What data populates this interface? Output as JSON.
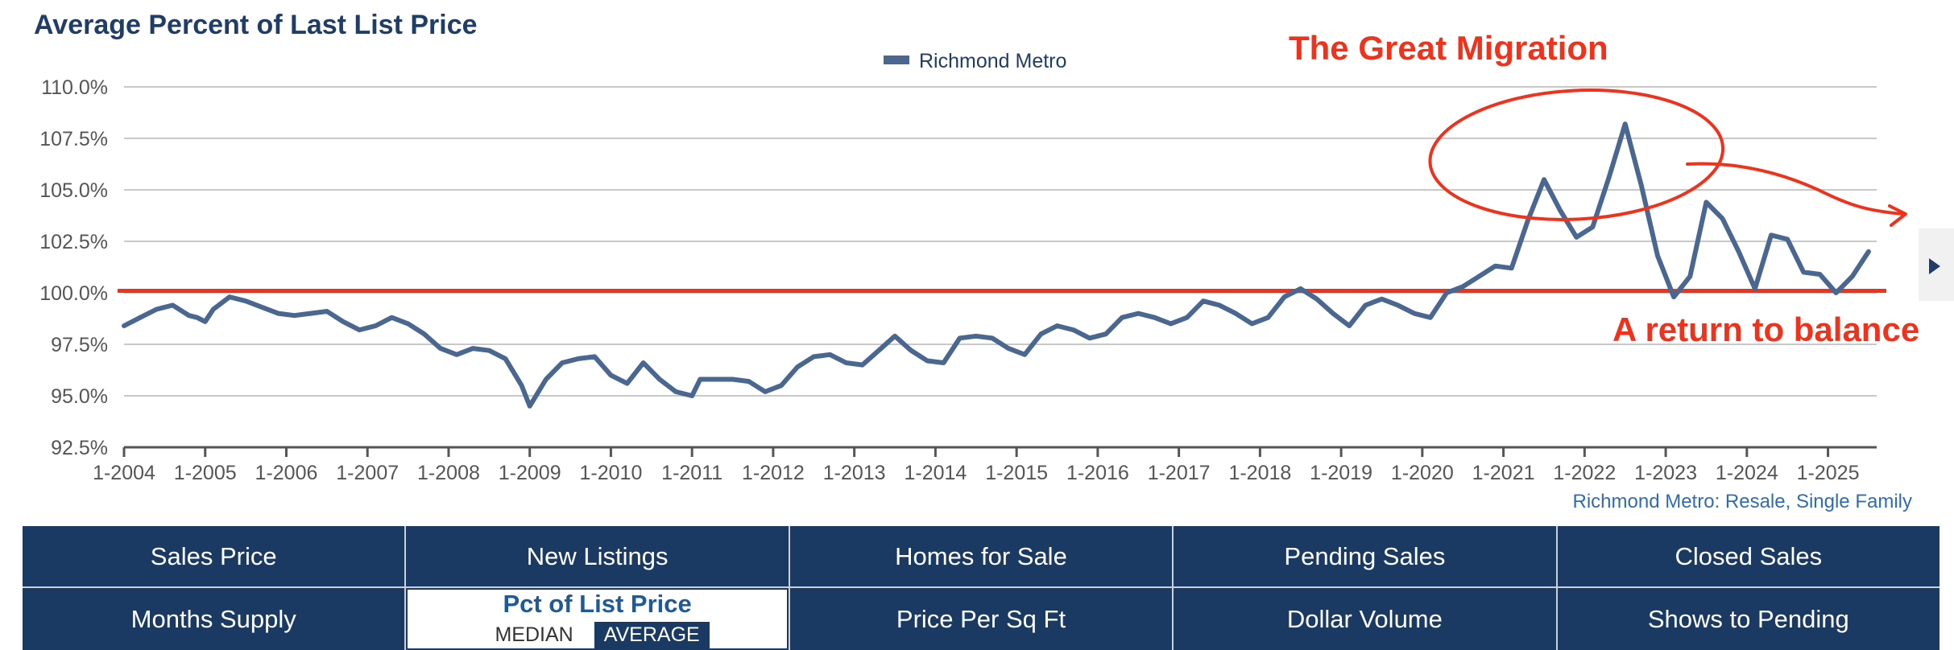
{
  "chart_data": {
    "type": "line",
    "title": "Average Percent of Last List Price",
    "legend": "Richmond Metro",
    "source": "Richmond Metro: Resale, Single Family",
    "ylim": [
      92.5,
      110.0
    ],
    "y_ticks": [
      "92.5%",
      "95.0%",
      "97.5%",
      "100.0%",
      "102.5%",
      "105.0%",
      "107.5%",
      "110.0%"
    ],
    "x_ticks": [
      "1-2004",
      "1-2005",
      "1-2006",
      "1-2007",
      "1-2008",
      "1-2009",
      "1-2010",
      "1-2011",
      "1-2012",
      "1-2013",
      "1-2014",
      "1-2015",
      "1-2016",
      "1-2017",
      "1-2018",
      "1-2019",
      "1-2020",
      "1-2021",
      "1-2022",
      "1-2023",
      "1-2024",
      "1-2025"
    ],
    "x_start": 2004.0,
    "x_end": 2025.6,
    "series": [
      {
        "name": "Richmond Metro",
        "color": "#4a6792",
        "x": [
          2004.0,
          2004.2,
          2004.4,
          2004.6,
          2004.8,
          2004.9,
          2005.0,
          2005.1,
          2005.3,
          2005.5,
          2005.7,
          2005.9,
          2006.1,
          2006.3,
          2006.5,
          2006.7,
          2006.9,
          2007.1,
          2007.3,
          2007.5,
          2007.7,
          2007.9,
          2008.1,
          2008.3,
          2008.5,
          2008.7,
          2008.9,
          2009.0,
          2009.2,
          2009.4,
          2009.6,
          2009.8,
          2010.0,
          2010.2,
          2010.4,
          2010.6,
          2010.8,
          2011.0,
          2011.1,
          2011.3,
          2011.5,
          2011.7,
          2011.9,
          2012.1,
          2012.3,
          2012.5,
          2012.7,
          2012.9,
          2013.1,
          2013.3,
          2013.5,
          2013.7,
          2013.9,
          2014.1,
          2014.3,
          2014.5,
          2014.7,
          2014.9,
          2015.1,
          2015.3,
          2015.5,
          2015.7,
          2015.9,
          2016.1,
          2016.3,
          2016.5,
          2016.7,
          2016.9,
          2017.1,
          2017.3,
          2017.5,
          2017.7,
          2017.9,
          2018.1,
          2018.3,
          2018.5,
          2018.7,
          2018.9,
          2019.1,
          2019.3,
          2019.5,
          2019.7,
          2019.9,
          2020.1,
          2020.3,
          2020.5,
          2020.7,
          2020.9,
          2021.1,
          2021.3,
          2021.5,
          2021.7,
          2021.9,
          2022.1,
          2022.3,
          2022.5,
          2022.7,
          2022.9,
          2023.1,
          2023.3,
          2023.5,
          2023.7,
          2023.9,
          2024.1,
          2024.3,
          2024.5,
          2024.7,
          2024.9,
          2025.1,
          2025.3,
          2025.5
        ],
        "values": [
          98.4,
          98.8,
          99.2,
          99.4,
          98.9,
          98.8,
          98.6,
          99.2,
          99.8,
          99.6,
          99.3,
          99.0,
          98.9,
          99.0,
          99.1,
          98.6,
          98.2,
          98.4,
          98.8,
          98.5,
          98.0,
          97.3,
          97.0,
          97.3,
          97.2,
          96.8,
          95.5,
          94.5,
          95.8,
          96.6,
          96.8,
          96.9,
          96.0,
          95.6,
          96.6,
          95.8,
          95.2,
          95.0,
          95.8,
          95.8,
          95.8,
          95.7,
          95.2,
          95.5,
          96.4,
          96.9,
          97.0,
          96.6,
          96.5,
          97.2,
          97.9,
          97.2,
          96.7,
          96.6,
          97.8,
          97.9,
          97.8,
          97.3,
          97.0,
          98.0,
          98.4,
          98.2,
          97.8,
          98.0,
          98.8,
          99.0,
          98.8,
          98.5,
          98.8,
          99.6,
          99.4,
          99.0,
          98.5,
          98.8,
          99.8,
          100.2,
          99.7,
          99.0,
          98.4,
          99.4,
          99.7,
          99.4,
          99.0,
          98.8,
          100.0,
          100.3,
          100.8,
          101.3,
          101.2,
          103.5,
          105.5,
          104.0,
          102.7,
          103.2,
          105.6,
          108.2,
          105.2,
          101.8,
          99.8,
          100.8,
          104.4,
          103.6,
          102.0,
          100.2,
          102.8,
          102.6,
          101.0,
          100.9,
          100.0,
          100.8,
          102.0
        ]
      }
    ],
    "reference_line": {
      "value": 100.1,
      "color": "#f0311c"
    },
    "annotations": {
      "peak_label": "The Great Migration",
      "balance_label": "A return to balance"
    }
  },
  "nav": {
    "row1": [
      "Sales Price",
      "New Listings",
      "Homes for Sale",
      "Pending Sales",
      "Closed Sales"
    ],
    "row2_first": "Months Supply",
    "active_label": "Pct of List Price",
    "toggle_median": "MEDIAN",
    "toggle_average": "AVERAGE",
    "row2_rest": [
      "Price Per Sq Ft",
      "Dollar Volume",
      "Shows to Pending"
    ]
  }
}
